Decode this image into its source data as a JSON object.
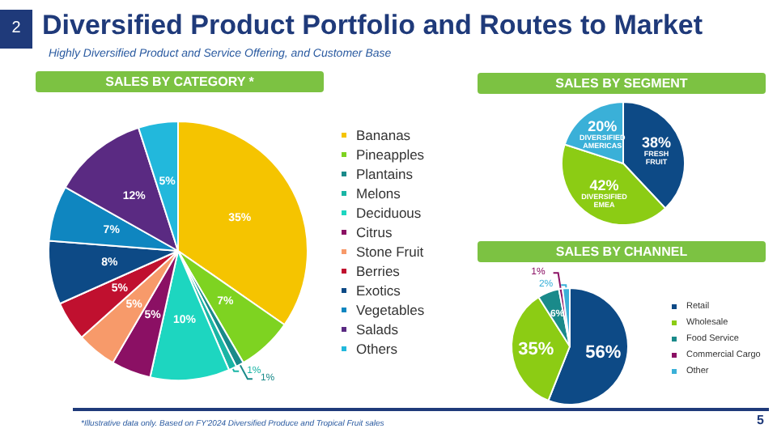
{
  "chart_data": [
    {
      "type": "pie",
      "title": "SALES BY CATEGORY *",
      "categories": [
        "Bananas",
        "Pineapples",
        "Plantains",
        "Melons",
        "Deciduous",
        "Citrus",
        "Stone Fruit",
        "Berries",
        "Exotics",
        "Vegetables",
        "Salads",
        "Others"
      ],
      "values": [
        35,
        7,
        1,
        1,
        10,
        5,
        5,
        5,
        8,
        7,
        12,
        5
      ],
      "colors": [
        "#f5c400",
        "#7ed321",
        "#1a8a8a",
        "#1ab5a5",
        "#1dd6c0",
        "#8b1064",
        "#f79a6a",
        "#c0102f",
        "#0d4a86",
        "#0f86c0",
        "#5a2a82",
        "#22b8dc"
      ],
      "value_labels": [
        "35%",
        "7%",
        "1%",
        "1%",
        "10%",
        "5%",
        "5%",
        "5%",
        "8%",
        "7%",
        "12%",
        "5%"
      ],
      "legend": "right",
      "annotations": [
        "2",
        "Diversified Product Portfolio and Routes to Market",
        "Highly Diversified Product and Service Offering, and Customer Base",
        "*Illustrative data only. Based on FY'2024 Diversified Produce and Tropical Fruit sales",
        "5"
      ]
    },
    {
      "type": "pie",
      "title": "SALES BY SEGMENT",
      "categories": [
        "FRESH FRUIT",
        "DIVERSIFIED EMEA",
        "DIVERSIFIED AMERICAS"
      ],
      "values": [
        38,
        42,
        20
      ],
      "colors": [
        "#0d4a86",
        "#8ccc14",
        "#3ab0d8"
      ],
      "value_labels": [
        "38%",
        "42%",
        "20%"
      ],
      "legend": false
    },
    {
      "type": "pie",
      "title": "SALES BY CHANNEL",
      "categories": [
        "Retail",
        "Wholesale",
        "Food Service",
        "Commercial Cargo",
        "Other"
      ],
      "values": [
        56,
        35,
        6,
        1,
        2
      ],
      "colors": [
        "#0d4a86",
        "#8ccc14",
        "#1a8a8a",
        "#8b1064",
        "#3ab0d8"
      ],
      "value_labels": [
        "56%",
        "35%",
        "6%",
        "1%",
        "2%"
      ],
      "legend": "right"
    }
  ]
}
